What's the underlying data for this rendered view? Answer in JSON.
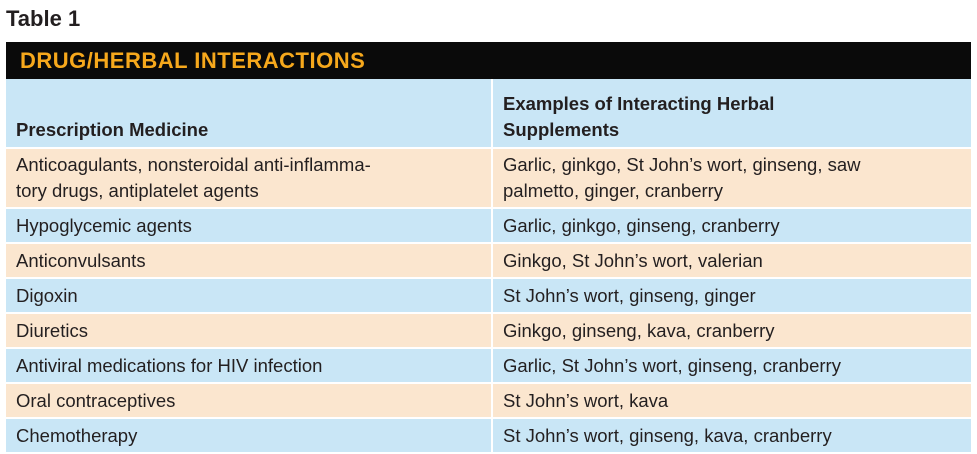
{
  "table_label": "Table 1",
  "banner_title": "DRUG/HERBAL INTERACTIONS",
  "colors": {
    "banner_bg": "#0a0a0a",
    "banner_text": "#f6a81c",
    "row_blue": "#c9e6f6",
    "row_peach": "#fbe6cf"
  },
  "headers": {
    "col1": "Prescription Medicine",
    "col2_line1": "Examples of Interacting Herbal",
    "col2_line2": "Supplements"
  },
  "rows": [
    {
      "medicine_line1": "Anticoagulants, nonsteroidal anti-inflamma-",
      "medicine_line2": "tory drugs, antiplatelet agents",
      "herbs_line1": "Garlic, ginkgo, St John’s wort, ginseng, saw",
      "herbs_line2": "palmetto, ginger, cranberry"
    },
    {
      "medicine": "Hypoglycemic agents",
      "herbs": "Garlic, ginkgo, ginseng, cranberry"
    },
    {
      "medicine": "Anticonvulsants",
      "herbs": "Ginkgo, St John’s wort, valerian"
    },
    {
      "medicine": "Digoxin",
      "herbs": "St John’s wort, ginseng, ginger"
    },
    {
      "medicine": "Diuretics",
      "herbs": "Ginkgo, ginseng, kava, cranberry"
    },
    {
      "medicine": "Antiviral medications for HIV infection",
      "herbs": "Garlic, St John’s wort, ginseng, cranberry"
    },
    {
      "medicine": "Oral contraceptives",
      "herbs": "St John’s wort, kava"
    },
    {
      "medicine": "Chemotherapy",
      "herbs": "St John’s wort, ginseng, kava, cranberry"
    }
  ]
}
